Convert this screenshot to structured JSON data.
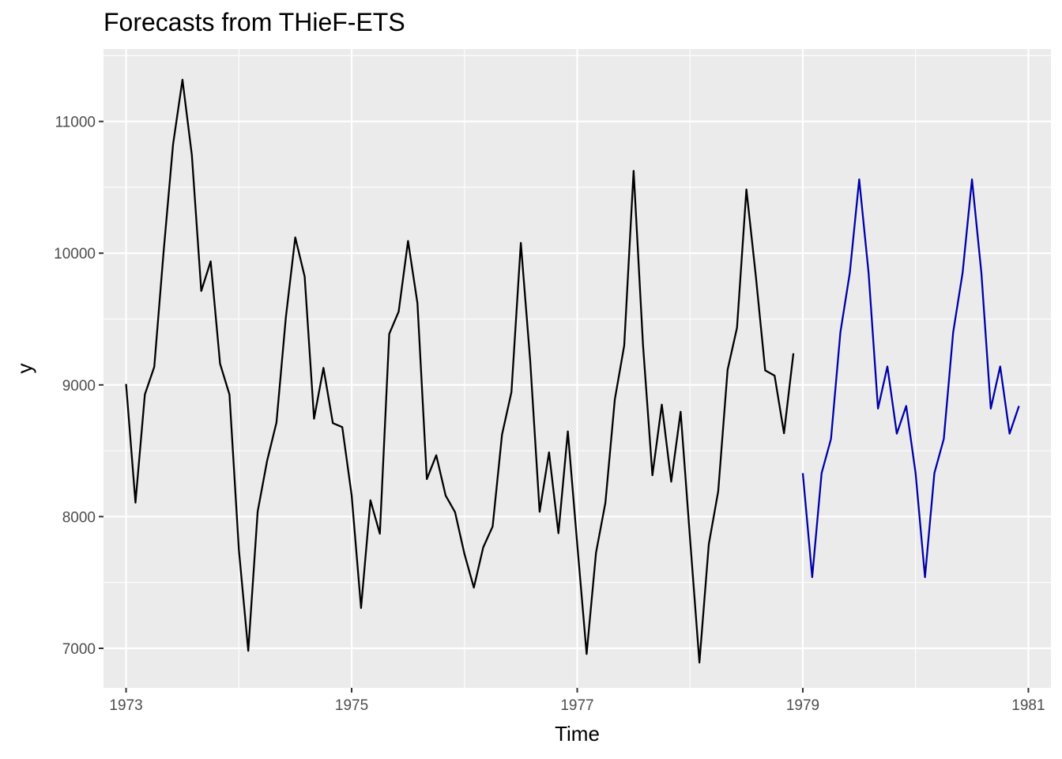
{
  "chart_data": {
    "type": "line",
    "title": "Forecasts from THieF-ETS",
    "xlabel": "Time",
    "ylabel": "y",
    "xlim": [
      1972.8,
      1981.2
    ],
    "ylim": [
      6700,
      11550
    ],
    "x_ticks": [
      1973,
      1975,
      1977,
      1979,
      1981
    ],
    "y_ticks": [
      7000,
      8000,
      9000,
      10000,
      11000
    ],
    "grid": true,
    "legend": "none",
    "colors": {
      "panel": "#ebebeb",
      "grid": "#ffffff",
      "history": "#000000",
      "forecast": "#0000aa"
    },
    "series": [
      {
        "role": "history",
        "start": 1973,
        "frequency": 12,
        "values": [
          9007,
          8106,
          8928,
          9137,
          10017,
          10826,
          11317,
          10744,
          9713,
          9938,
          9161,
          8927,
          7750,
          6981,
          8038,
          8422,
          8714,
          9512,
          10120,
          9823,
          8743,
          9129,
          8710,
          8680,
          8162,
          7306,
          8124,
          7870,
          9387,
          9556,
          10093,
          9620,
          8285,
          8466,
          8160,
          8034,
          7717,
          7461,
          7767,
          7925,
          8623,
          8945,
          10078,
          9179,
          8037,
          8488,
          7874,
          8647,
          7792,
          6957,
          7726,
          8106,
          8890,
          9299,
          10625,
          9302,
          8314,
          8850,
          8265,
          8796,
          7836,
          6892,
          7791,
          8192,
          9115,
          9434,
          10484,
          9827,
          9110,
          9070,
          8633,
          9240
        ]
      },
      {
        "role": "forecast",
        "start": 1979,
        "frequency": 12,
        "values": [
          8330,
          7540,
          8330,
          8590,
          9400,
          9850,
          10560,
          9850,
          8820,
          9140,
          8630,
          8840,
          8330,
          7540,
          8330,
          8590,
          9400,
          9850,
          10560,
          9850,
          8820,
          9140,
          8630,
          8840
        ]
      }
    ]
  }
}
